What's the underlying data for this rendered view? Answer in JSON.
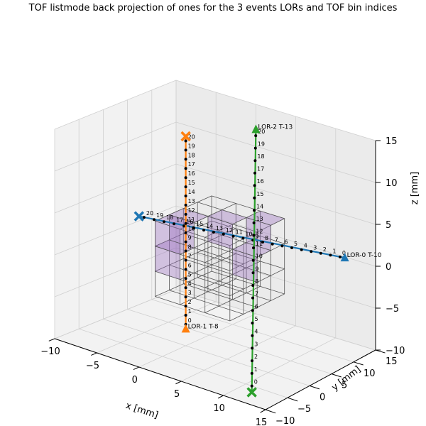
{
  "chart_data": {
    "type": "line3d",
    "title": "TOF listmode back projection of ones for the 3 events LORs and TOF bin indices",
    "xlabel": "x [mm]",
    "ylabel": "y [mm]",
    "zlabel": "z [mm]",
    "xlim": [
      -10,
      15
    ],
    "ylim": [
      -10,
      15
    ],
    "zlim": [
      -10,
      15
    ],
    "xticks": [
      "−10",
      "−5",
      "0",
      "5",
      "10",
      "15"
    ],
    "yticks": [
      "−10",
      "−5",
      "0",
      "5",
      "10",
      "15"
    ],
    "zticks": [
      "−10",
      "−5",
      "0",
      "5",
      "10",
      "15"
    ],
    "grid": true,
    "colors": {
      "lor0": "#1f77b4",
      "lor1": "#ff7f0e",
      "lor2": "#2ca02c",
      "voxel_fill": "#9467bd",
      "voxel_edge": "#555555"
    },
    "series": [
      {
        "name": "LOR-0 T-10",
        "start": [
          0,
          -10,
          8
        ],
        "end": [
          15,
          8,
          3
        ],
        "bins": [
          "20",
          "19",
          "18",
          "17",
          "16",
          "15",
          "14",
          "13",
          "12",
          "11",
          "10",
          "9",
          "8",
          "7",
          "6",
          "5",
          "4",
          "3",
          "2",
          "1",
          "0"
        ]
      },
      {
        "name": "LOR-1 T-8",
        "start": [
          0,
          0,
          15
        ],
        "end": [
          0,
          0,
          -8
        ],
        "bins": [
          "20",
          "19",
          "18",
          "17",
          "16",
          "15",
          "14",
          "13",
          "12",
          "11",
          "10",
          "9",
          "8",
          "7",
          "6",
          "5",
          "4",
          "3",
          "2",
          "1",
          "0"
        ]
      },
      {
        "name": "LOR-2 T-13",
        "start": [
          8,
          0,
          -13
        ],
        "end": [
          0,
          15,
          12
        ],
        "bins": [
          "0",
          "1",
          "2",
          "3",
          "4",
          "5",
          "6",
          "7",
          "8",
          "9",
          "10",
          "11",
          "12",
          "13",
          "14",
          "15",
          "16",
          "17",
          "18",
          "19",
          "20"
        ]
      }
    ]
  }
}
